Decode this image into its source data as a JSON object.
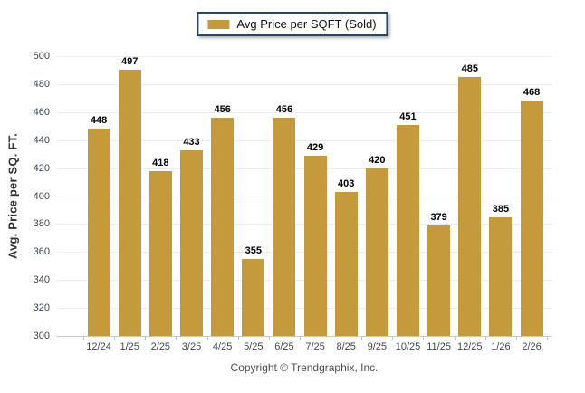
{
  "legend": {
    "label": "Avg Price per SQFT (Sold)"
  },
  "footer": {
    "copyright": "Copyright © Trendgraphix, Inc."
  },
  "colors": {
    "bar": "#c49a3d",
    "legend_border": "#26466f",
    "gridline": "#ececec",
    "axis_line": "#c6c9cd",
    "tick_label": "#3d4854",
    "value_label": "#000000"
  },
  "chart_data": {
    "type": "bar",
    "title": "",
    "xlabel": "",
    "ylabel": "Avg. Price per SQ. FT.",
    "series_name": "Avg Price per SQFT (Sold)",
    "categories": [
      "12/24",
      "1/25",
      "2/25",
      "3/25",
      "4/25",
      "5/25",
      "6/25",
      "7/25",
      "8/25",
      "9/25",
      "10/25",
      "11/25",
      "12/25",
      "1/26",
      "2/26"
    ],
    "values": [
      448,
      497,
      418,
      433,
      456,
      355,
      456,
      429,
      403,
      420,
      451,
      379,
      485,
      385,
      468
    ],
    "ylim": [
      300,
      500
    ],
    "yticks": [
      300,
      320,
      340,
      360,
      380,
      400,
      420,
      440,
      460,
      480,
      500
    ],
    "grid": true,
    "legend_position": "top-center",
    "bar_color": "#c49a3d",
    "value_labels": true
  }
}
